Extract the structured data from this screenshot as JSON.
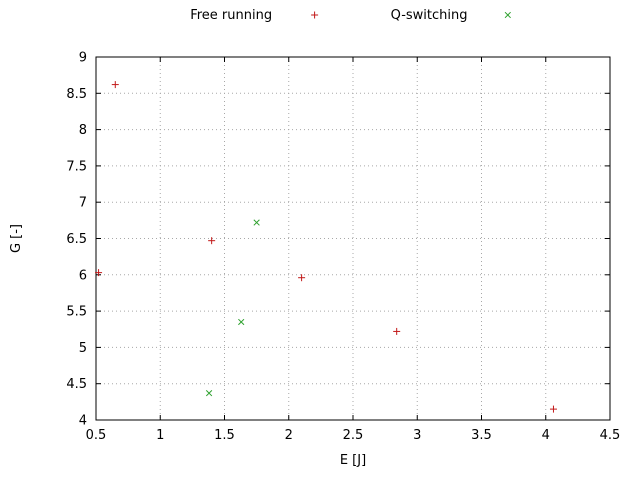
{
  "chart_data": {
    "type": "scatter",
    "title": "",
    "xlabel": "E [J]",
    "ylabel": "G [-]",
    "xlim": [
      0.5,
      4.5
    ],
    "ylim": [
      4,
      9
    ],
    "xticks": [
      0.5,
      1,
      1.5,
      2,
      2.5,
      3,
      3.5,
      4,
      4.5
    ],
    "yticks": [
      4,
      4.5,
      5,
      5.5,
      6,
      6.5,
      7,
      7.5,
      8,
      8.5,
      9
    ],
    "grid": true,
    "legend_position": "top-center",
    "series": [
      {
        "name": "Free running",
        "marker": "plus",
        "color": "#c21919",
        "points": [
          [
            0.52,
            6.03
          ],
          [
            0.65,
            8.62
          ],
          [
            1.4,
            6.47
          ],
          [
            2.1,
            5.96
          ],
          [
            2.84,
            5.22
          ],
          [
            4.06,
            4.15
          ]
        ]
      },
      {
        "name": "Q-switching",
        "marker": "cross",
        "color": "#2ca02c",
        "points": [
          [
            1.75,
            6.72
          ],
          [
            1.63,
            5.35
          ],
          [
            1.38,
            4.37
          ]
        ]
      }
    ]
  },
  "colors": {
    "background": "#ffffff",
    "border": "#000000",
    "grid": "#a8a8a8",
    "text": "#000000"
  }
}
